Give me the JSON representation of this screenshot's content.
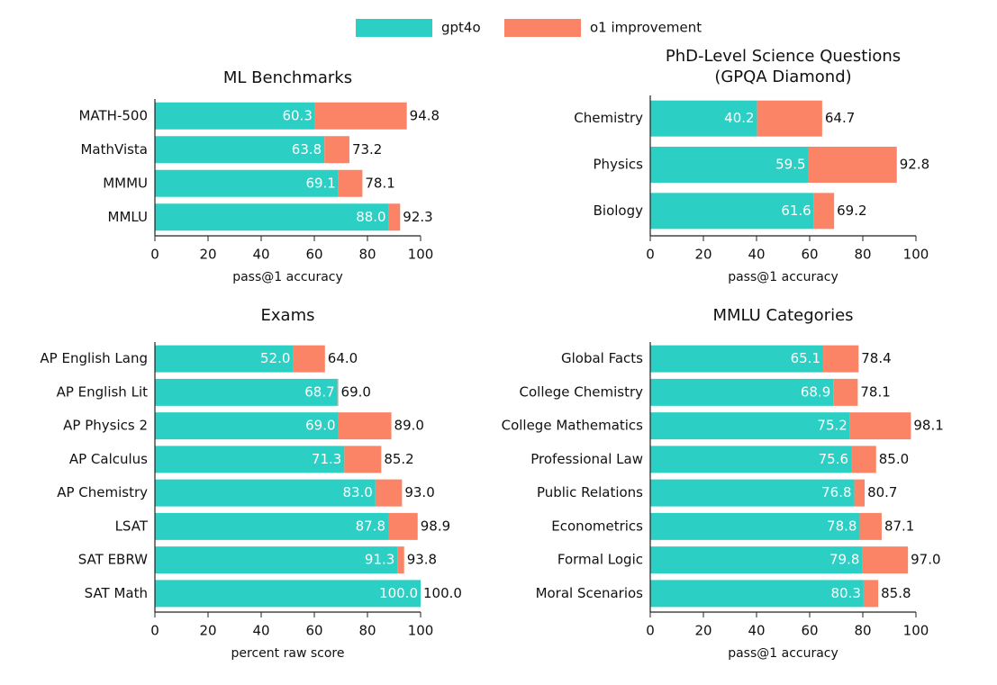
{
  "chart_data": [
    {
      "type": "bar",
      "orientation": "horizontal",
      "title": [
        "ML Benchmarks"
      ],
      "xlabel": "pass@1 accuracy",
      "categories": [
        "MATH-500",
        "MathVista",
        "MMMU",
        "MMLU"
      ],
      "series": [
        {
          "name": "gpt4o",
          "color": "#2ccfc3",
          "values": [
            60.3,
            63.8,
            69.1,
            88.0
          ],
          "value_labels": [
            "60.3",
            "63.8",
            "69.1",
            "88.0"
          ]
        },
        {
          "name": "o1 improvement",
          "color": "#fb8467",
          "values": [
            34.5,
            9.4,
            9.0,
            4.3
          ]
        }
      ],
      "total_labels": [
        "94.8",
        "73.2",
        "78.1",
        "92.3"
      ],
      "xlim": [
        0,
        100
      ],
      "xticks": [
        0,
        20,
        40,
        60,
        80,
        100
      ]
    },
    {
      "type": "bar",
      "orientation": "horizontal",
      "title": [
        "PhD-Level Science Questions",
        "(GPQA Diamond)"
      ],
      "xlabel": "pass@1 accuracy",
      "categories": [
        "Chemistry",
        "Physics",
        "Biology"
      ],
      "series": [
        {
          "name": "gpt4o",
          "color": "#2ccfc3",
          "values": [
            40.2,
            59.5,
            61.6
          ],
          "value_labels": [
            "40.2",
            "59.5",
            "61.6"
          ]
        },
        {
          "name": "o1 improvement",
          "color": "#fb8467",
          "values": [
            24.5,
            33.3,
            7.6
          ]
        }
      ],
      "total_labels": [
        "64.7",
        "92.8",
        "69.2"
      ],
      "xlim": [
        0,
        100
      ],
      "xticks": [
        0,
        20,
        40,
        60,
        80,
        100
      ]
    },
    {
      "type": "bar",
      "orientation": "horizontal",
      "title": [
        "Exams"
      ],
      "xlabel": "percent raw score",
      "categories": [
        "AP English Lang",
        "AP English Lit",
        "AP Physics 2",
        "AP Calculus",
        "AP Chemistry",
        "LSAT",
        "SAT EBRW",
        "SAT Math"
      ],
      "series": [
        {
          "name": "gpt4o",
          "color": "#2ccfc3",
          "values": [
            52.0,
            68.7,
            69.0,
            71.3,
            83.0,
            87.8,
            91.3,
            100.0
          ],
          "value_labels": [
            "52.0",
            "68.7",
            "69.0",
            "71.3",
            "83.0",
            "87.8",
            "91.3",
            "100.0"
          ]
        },
        {
          "name": "o1 improvement",
          "color": "#fb8467",
          "values": [
            12.0,
            0.3,
            20.0,
            13.9,
            10.0,
            11.1,
            2.5,
            0
          ]
        }
      ],
      "total_labels": [
        "64.0",
        "69.0",
        "89.0",
        "85.2",
        "93.0",
        "98.9",
        "93.8",
        "100.0"
      ],
      "xlim": [
        0,
        100
      ],
      "xticks": [
        0,
        20,
        40,
        60,
        80,
        100
      ]
    },
    {
      "type": "bar",
      "orientation": "horizontal",
      "title": [
        "MMLU Categories"
      ],
      "xlabel": "pass@1 accuracy",
      "categories": [
        "Global Facts",
        "College Chemistry",
        "College Mathematics",
        "Professional Law",
        "Public Relations",
        "Econometrics",
        "Formal Logic",
        "Moral Scenarios"
      ],
      "series": [
        {
          "name": "gpt4o",
          "color": "#2ccfc3",
          "values": [
            65.1,
            68.9,
            75.2,
            75.6,
            76.8,
            78.8,
            79.8,
            80.3
          ],
          "value_labels": [
            "65.1",
            "68.9",
            "75.2",
            "75.6",
            "76.8",
            "78.8",
            "79.8",
            "80.3"
          ]
        },
        {
          "name": "o1 improvement",
          "color": "#fb8467",
          "values": [
            13.3,
            9.2,
            22.9,
            9.4,
            3.9,
            8.3,
            17.2,
            5.5
          ]
        }
      ],
      "total_labels": [
        "78.4",
        "78.1",
        "98.1",
        "85.0",
        "80.7",
        "87.1",
        "97.0",
        "85.8"
      ],
      "xlim": [
        0,
        100
      ],
      "xticks": [
        0,
        20,
        40,
        60,
        80,
        100
      ]
    }
  ]
}
